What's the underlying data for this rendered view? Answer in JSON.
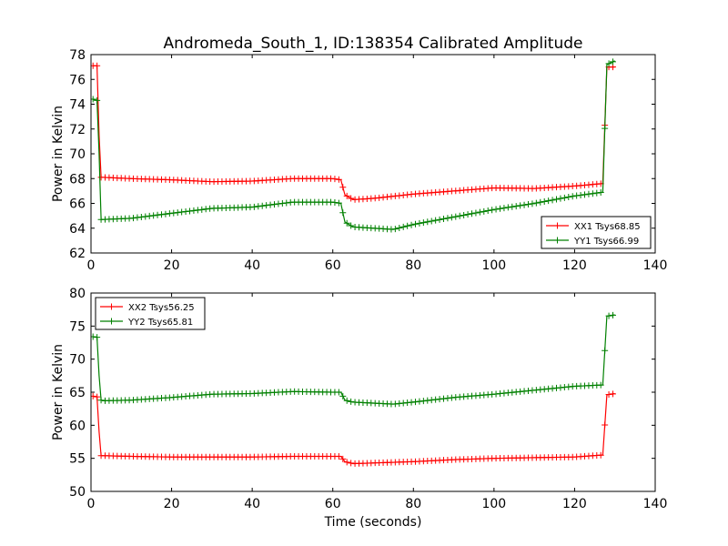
{
  "figure": {
    "title": "Andromeda_South_1, ID:138354 Calibrated Amplitude",
    "xlabel": "Time (seconds)"
  },
  "colors": {
    "red": "#ff0000",
    "green": "#008000",
    "axis": "#000000"
  },
  "chart_data": [
    {
      "type": "line",
      "ylabel": "Power in Kelvin",
      "xlim": [
        0,
        140
      ],
      "ylim": [
        62,
        78
      ],
      "xticks": [
        0,
        20,
        40,
        60,
        80,
        100,
        120,
        140
      ],
      "yticks": [
        62,
        64,
        66,
        68,
        70,
        72,
        74,
        76,
        78
      ],
      "legend_position": "lower right",
      "series": [
        {
          "name": "XX1 Tsys68.85",
          "color": "#ff0000",
          "marker": "+",
          "points": [
            [
              0.5,
              77.1
            ],
            [
              1.5,
              77.1
            ],
            [
              2,
              71.5
            ],
            [
              2.5,
              68.1
            ],
            [
              3,
              68.1
            ],
            [
              10,
              68.0
            ],
            [
              20,
              67.9
            ],
            [
              30,
              67.75
            ],
            [
              40,
              67.8
            ],
            [
              50,
              68.0
            ],
            [
              60,
              68.0
            ],
            [
              62,
              67.9
            ],
            [
              63,
              66.7
            ],
            [
              65,
              66.3
            ],
            [
              70,
              66.4
            ],
            [
              80,
              66.75
            ],
            [
              90,
              67.0
            ],
            [
              100,
              67.25
            ],
            [
              110,
              67.2
            ],
            [
              120,
              67.4
            ],
            [
              127,
              67.6
            ],
            [
              128,
              77.0
            ],
            [
              130,
              77.0
            ]
          ]
        },
        {
          "name": "YY1 Tsys66.99",
          "color": "#008000",
          "marker": "+",
          "points": [
            [
              0.5,
              74.4
            ],
            [
              1.5,
              74.3
            ],
            [
              2,
              70.0
            ],
            [
              2.5,
              64.7
            ],
            [
              3,
              64.7
            ],
            [
              10,
              64.8
            ],
            [
              20,
              65.2
            ],
            [
              30,
              65.6
            ],
            [
              40,
              65.7
            ],
            [
              50,
              66.1
            ],
            [
              60,
              66.1
            ],
            [
              62,
              66.0
            ],
            [
              63,
              64.5
            ],
            [
              65,
              64.1
            ],
            [
              75,
              63.9
            ],
            [
              80,
              64.3
            ],
            [
              90,
              64.9
            ],
            [
              100,
              65.5
            ],
            [
              110,
              66.0
            ],
            [
              120,
              66.6
            ],
            [
              127,
              66.9
            ],
            [
              128,
              77.2
            ],
            [
              130,
              77.5
            ]
          ]
        }
      ]
    },
    {
      "type": "line",
      "ylabel": "Power in Kelvin",
      "xlim": [
        0,
        140
      ],
      "ylim": [
        50,
        80
      ],
      "xticks": [
        0,
        20,
        40,
        60,
        80,
        100,
        120,
        140
      ],
      "yticks": [
        50,
        55,
        60,
        65,
        70,
        75,
        80
      ],
      "legend_position": "upper left",
      "series": [
        {
          "name": "XX2 Tsys56.25",
          "color": "#ff0000",
          "marker": "+",
          "points": [
            [
              0.5,
              64.4
            ],
            [
              1.5,
              64.3
            ],
            [
              2,
              59.0
            ],
            [
              2.5,
              55.4
            ],
            [
              3,
              55.4
            ],
            [
              10,
              55.3
            ],
            [
              20,
              55.2
            ],
            [
              30,
              55.2
            ],
            [
              40,
              55.2
            ],
            [
              50,
              55.3
            ],
            [
              60,
              55.3
            ],
            [
              62,
              55.3
            ],
            [
              63,
              54.5
            ],
            [
              65,
              54.2
            ],
            [
              70,
              54.3
            ],
            [
              80,
              54.5
            ],
            [
              90,
              54.8
            ],
            [
              100,
              55.0
            ],
            [
              110,
              55.1
            ],
            [
              120,
              55.2
            ],
            [
              127,
              55.5
            ],
            [
              128,
              64.6
            ],
            [
              130,
              64.8
            ]
          ]
        },
        {
          "name": "YY2 Tsys65.81",
          "color": "#008000",
          "marker": "+",
          "points": [
            [
              0.5,
              73.4
            ],
            [
              1.5,
              73.3
            ],
            [
              2,
              67.5
            ],
            [
              2.5,
              63.8
            ],
            [
              3,
              63.7
            ],
            [
              10,
              63.8
            ],
            [
              20,
              64.2
            ],
            [
              30,
              64.7
            ],
            [
              40,
              64.8
            ],
            [
              50,
              65.1
            ],
            [
              60,
              65.0
            ],
            [
              62,
              65.0
            ],
            [
              63,
              63.8
            ],
            [
              65,
              63.5
            ],
            [
              75,
              63.2
            ],
            [
              80,
              63.5
            ],
            [
              90,
              64.2
            ],
            [
              100,
              64.7
            ],
            [
              110,
              65.3
            ],
            [
              120,
              65.9
            ],
            [
              127,
              66.1
            ],
            [
              128,
              76.5
            ],
            [
              130,
              76.7
            ]
          ]
        }
      ]
    }
  ]
}
